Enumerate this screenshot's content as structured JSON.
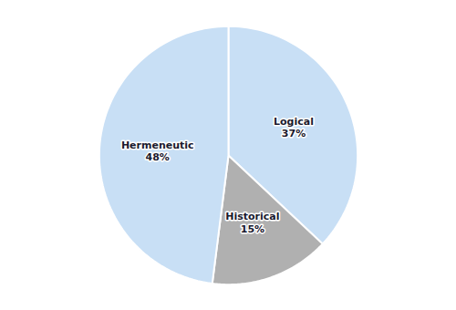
{
  "chart_data": {
    "type": "pie",
    "categories": [
      "Logical",
      "Historical",
      "Hermeneutic"
    ],
    "values": [
      37,
      15,
      48
    ],
    "value_labels": [
      "37%",
      "15%",
      "48%"
    ],
    "colors": [
      "#c8dff5",
      "#b0b0b0",
      "#c8dff5"
    ],
    "data_labels": true
  }
}
